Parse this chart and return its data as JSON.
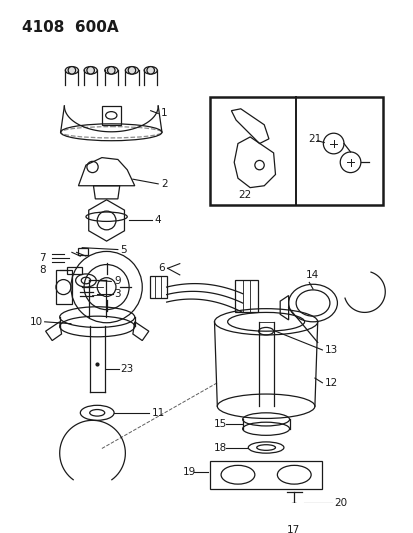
{
  "title": "4108  600A",
  "background_color": "#ffffff",
  "line_color": "#1a1a1a",
  "title_fontsize": 11,
  "label_fontsize": 7.5,
  "fig_width": 4.14,
  "fig_height": 5.33,
  "dpi": 100
}
